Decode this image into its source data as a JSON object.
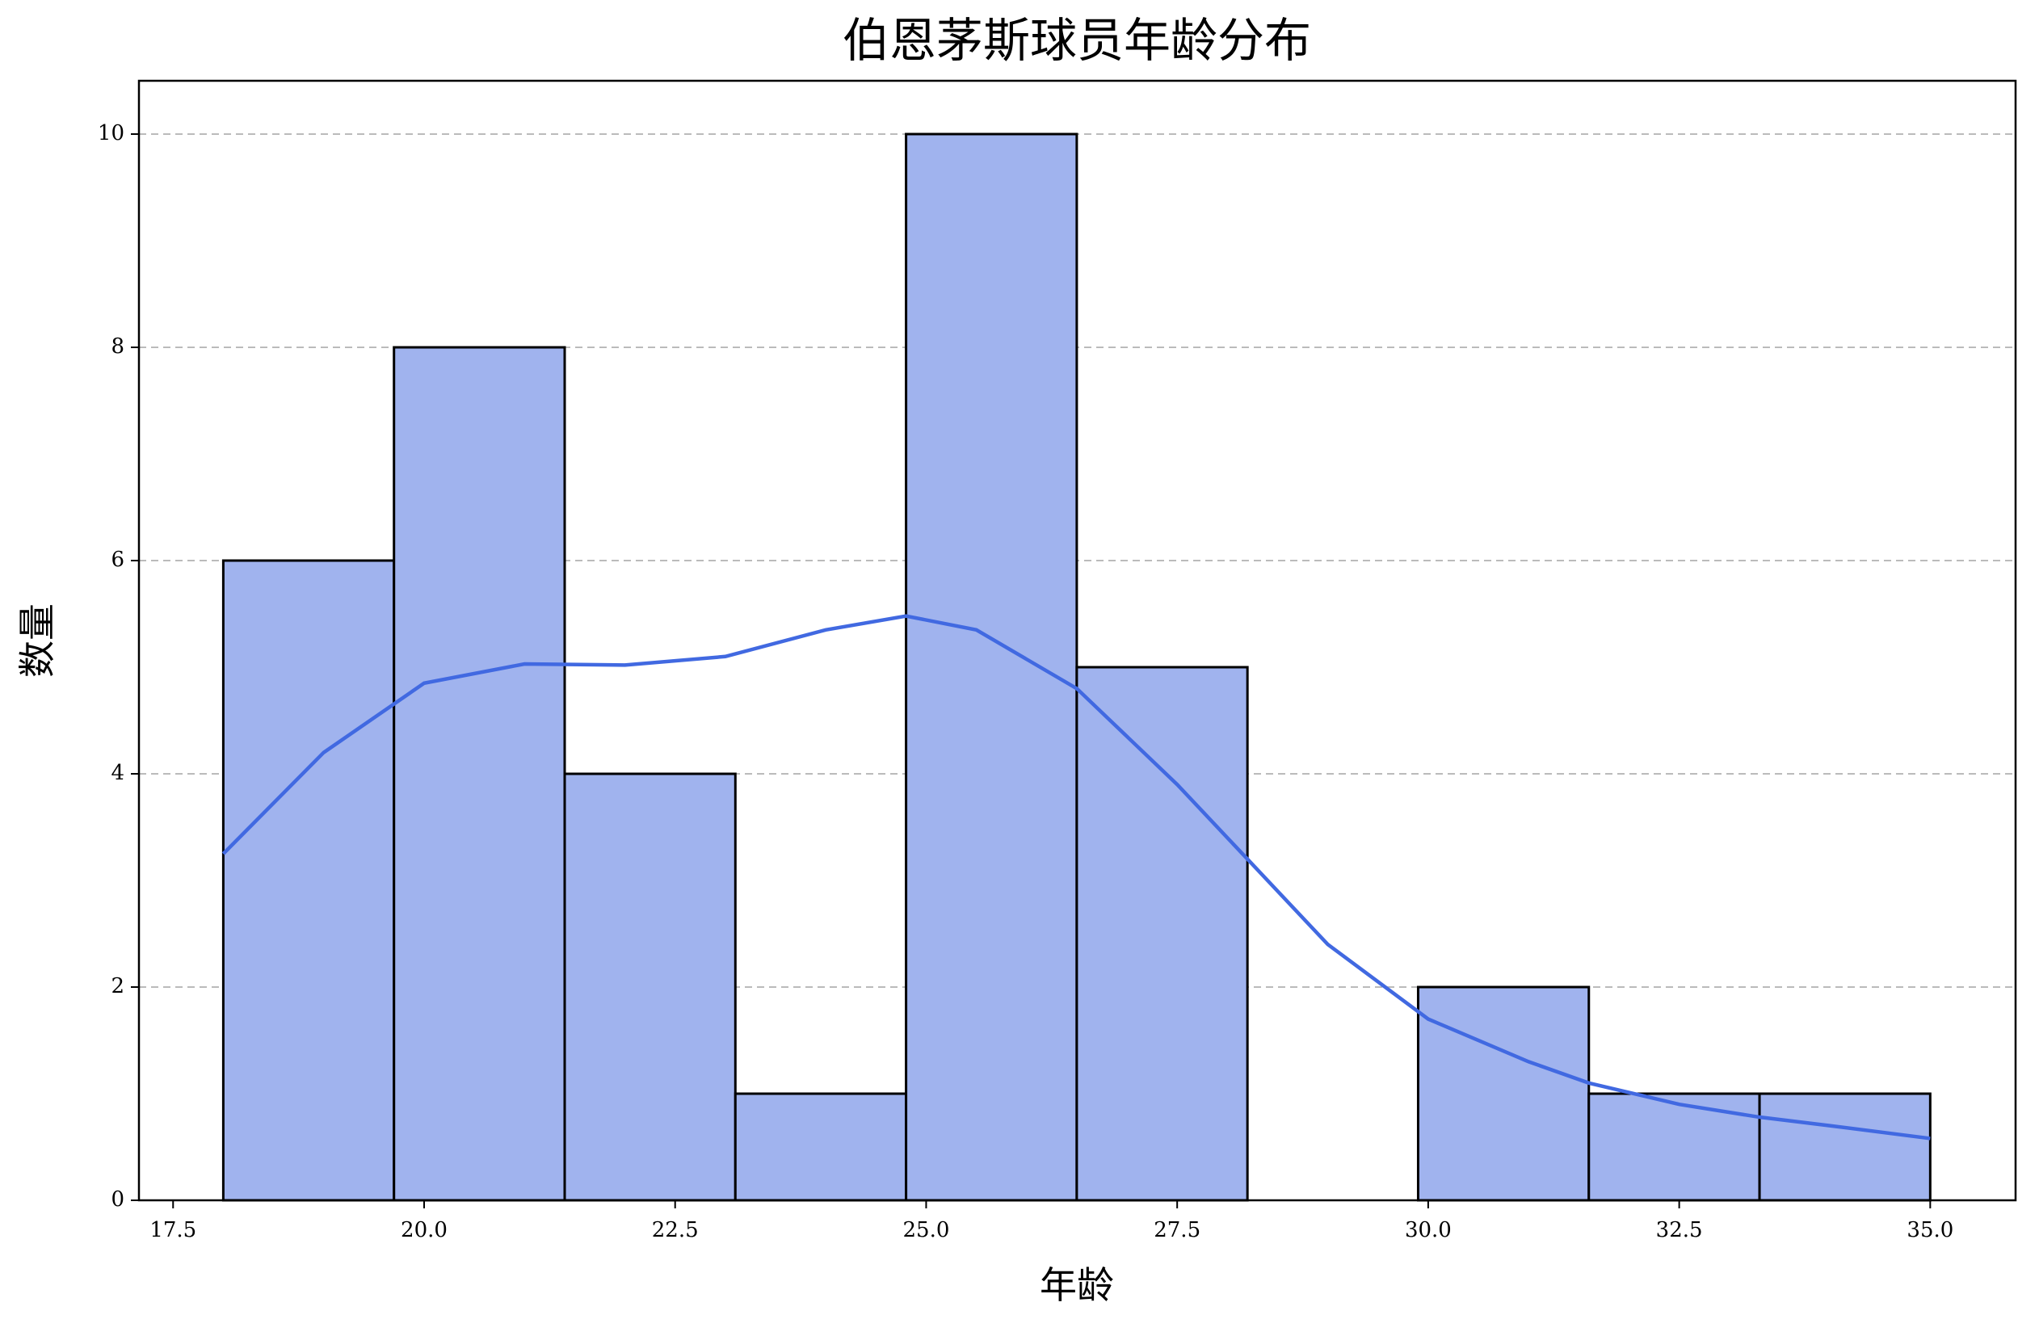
{
  "chart_data": {
    "type": "histogram",
    "title": "伯恩茅斯球员年龄分布",
    "x_label": "年龄",
    "y_label": "数量",
    "bins": [
      18,
      19.7,
      21.4,
      23.1,
      24.8,
      26.5,
      28.2,
      29.9,
      31.6,
      33.3,
      35
    ],
    "counts": [
      6,
      8,
      4,
      1,
      10,
      5,
      0,
      2,
      1,
      1
    ],
    "color": "#a0b3ee",
    "edgecolor": "#000000",
    "kde": {
      "color": "#4169e1",
      "x": [
        18,
        19,
        20,
        21,
        22,
        23,
        24,
        24.8,
        25.5,
        26.5,
        27.5,
        28.2,
        29,
        30,
        31,
        31.6,
        32.5,
        33.3,
        34,
        35
      ],
      "values": [
        3.25,
        4.2,
        4.85,
        5.03,
        5.02,
        5.1,
        5.35,
        5.48,
        5.35,
        4.8,
        3.9,
        3.2,
        2.4,
        1.7,
        1.3,
        1.1,
        0.9,
        0.78,
        0.7,
        0.58
      ]
    },
    "xlim": [
      17.16,
      35.85
    ],
    "ylim": [
      0,
      10.5
    ],
    "xticks": [
      17.5,
      {
        "value": 20,
        "label": "20.0"
      },
      22.5,
      {
        "value": 25,
        "label": "25.0"
      },
      27.5,
      {
        "value": 30,
        "label": "30.0"
      },
      32.5,
      {
        "value": 35,
        "label": "35.0"
      }
    ],
    "yticks": [
      0,
      2,
      4,
      6,
      8,
      10
    ],
    "grid": true
  }
}
